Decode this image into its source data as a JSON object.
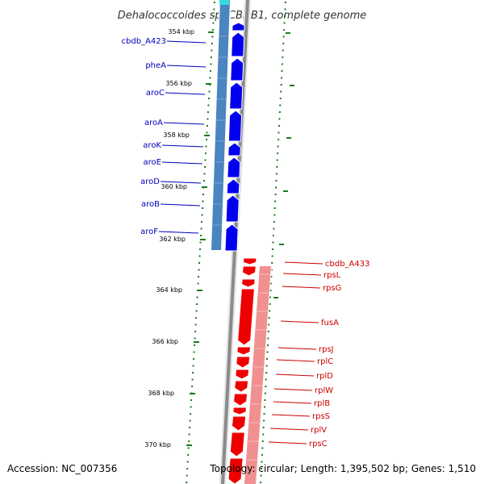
{
  "title": "Dehalococcoides sp. CBDB1, complete genome",
  "accession": "Accession: NC_007356",
  "topology": "Topology: circular; Length: 1,395,502 bp; Genes: 1,510",
  "colors": {
    "reverse_gene_label": "#0000bb",
    "forward_gene_label": "#cc0000",
    "reverse_arrows": "#0000ee",
    "forward_arrows": "#ee0000",
    "reverse_track": "#4a85c0",
    "forward_track": "#f09090",
    "backbone": "#8a8a8a",
    "ticks": "#1a7a1a"
  },
  "kbp_labels": [
    "354 kbp",
    "356 kbp",
    "358 kbp",
    "360 kbp",
    "362 kbp",
    "364 kbp",
    "366 kbp",
    "368 kbp",
    "370 kbp"
  ],
  "reverse_genes": [
    "cbdb_A423",
    "pheA",
    "aroC",
    "aroA",
    "aroK",
    "aroE",
    "aroD",
    "aroB",
    "aroF"
  ],
  "forward_genes": [
    "cbdb_A433",
    "rpsL",
    "rpsG",
    "fusA",
    "rpsJ",
    "rplC",
    "rplD",
    "rplW",
    "rplB",
    "rpsS",
    "rplV",
    "rpsC"
  ]
}
